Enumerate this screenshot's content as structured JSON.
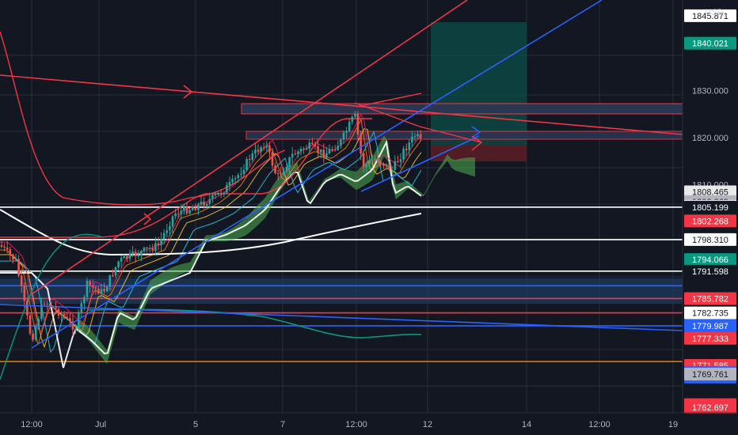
{
  "chart_data": {
    "type": "candlestick",
    "title": "",
    "currency": "USD",
    "x_tick_labels": [
      "12:00",
      "Jul",
      "5",
      "7",
      "12:00",
      "12",
      "14",
      "12:00",
      "19"
    ],
    "price_ticks": [
      "1830.000",
      "1820.000",
      "1810.000"
    ],
    "ylim": [
      1761.5,
      1849.2
    ],
    "price_tags": [
      {
        "value": 1845.871,
        "label": "1845.871",
        "bg": "#ffffff",
        "fg": "#131722"
      },
      {
        "value": 1840.021,
        "label": "1840.021",
        "bg": "#089981",
        "fg": "#ffffff"
      },
      {
        "value": 1808.465,
        "label": "1808.465",
        "bg": "#e8e8e8",
        "fg": "#131722"
      },
      {
        "value": 1806.369,
        "label": "1806.369",
        "bg": "#b2b5be",
        "fg": "#131722"
      },
      {
        "value": 1806.369,
        "label": "1806.369",
        "bg": "#ffffff",
        "fg": "#131722",
        "offset": 6
      },
      {
        "value": 1805.199,
        "label": "1805.199",
        "bg": "#131722",
        "fg": "#ffffff"
      },
      {
        "value": 1802.268,
        "label": "1802.268",
        "bg": "#f23645",
        "fg": "#ffffff"
      },
      {
        "value": 1798.31,
        "label": "1798.310",
        "bg": "#ffffff",
        "fg": "#131722"
      },
      {
        "value": 1794.066,
        "label": "1794.066",
        "bg": "#089981",
        "fg": "#ffffff"
      },
      {
        "value": 1791.598,
        "label": "1791.598",
        "bg": "#131722",
        "fg": "#ffffff"
      },
      {
        "value": 1785.782,
        "label": "1785.782",
        "bg": "#f23645",
        "fg": "#ffffff"
      },
      {
        "value": 1782.735,
        "label": "1782.735",
        "bg": "#ffffff",
        "fg": "#131722"
      },
      {
        "value": 1779.987,
        "label": "1779.987",
        "bg": "#2962ff",
        "fg": "#ffffff"
      },
      {
        "value": 1777.333,
        "label": "1777.333",
        "bg": "#f23645",
        "fg": "#ffffff"
      },
      {
        "value": 1771.585,
        "label": "1771.585",
        "bg": "#f23645",
        "fg": "#ffffff"
      },
      {
        "value": 1770.1,
        "label": "1770.100",
        "bg": "#2962ff",
        "fg": "#ffffff"
      },
      {
        "value": 1770.1,
        "label": "1770.100",
        "bg": "#2962ff",
        "fg": "#ffffff",
        "offset": 6
      },
      {
        "value": 1769.761,
        "label": "1769.761",
        "bg": "#b2b5be",
        "fg": "#131722"
      },
      {
        "value": 1763.239,
        "label": "1763.239",
        "bg": "#f23645",
        "fg": "#ffffff"
      },
      {
        "value": 1762.911,
        "label": "1762.911",
        "bg": "#f23645",
        "fg": "#ffffff"
      },
      {
        "value": 1762.697,
        "label": "1762.697",
        "bg": "#f23645",
        "fg": "#ffffff"
      }
    ],
    "horizontal_levels": [
      {
        "value": 1805.199,
        "color": "#ffffff"
      },
      {
        "value": 1798.31,
        "color": "#ffffff"
      },
      {
        "value": 1791.598,
        "color": "#ffffff"
      },
      {
        "value": 1782.735,
        "color": "#f23645"
      },
      {
        "value": 1785.782,
        "color": "#f23645"
      },
      {
        "value": 1788.5,
        "color": "#2962ff"
      },
      {
        "value": 1779.987,
        "color": "#2962ff"
      },
      {
        "value": 1772.4,
        "color": "#f57c00"
      }
    ],
    "colors": {
      "background": "#131722",
      "up_candle": "#26a69a",
      "down_candle": "#ef5350",
      "cloud": "#4caf50",
      "trendline_red": "#f23645",
      "trendline_blue": "#2962ff",
      "grid": "#2a2e39"
    }
  }
}
